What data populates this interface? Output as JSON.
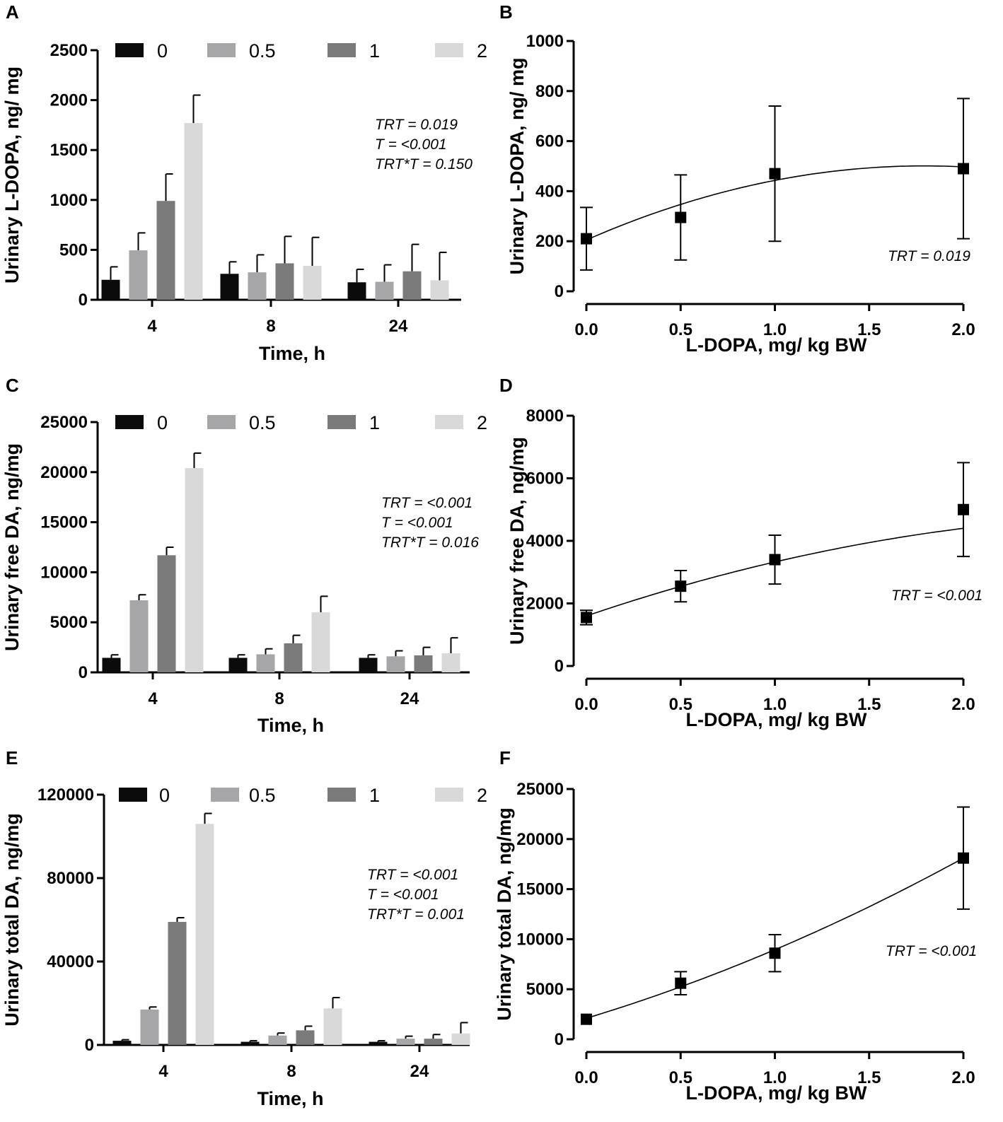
{
  "figure": {
    "palette": {
      "0": "#0b0b0b",
      "0.5": "#a6a6a8",
      "1": "#7a7a7a",
      "2": "#d9d9d9"
    },
    "legend_labels": [
      "0",
      "0.5",
      "1",
      "2"
    ]
  },
  "chart_data": [
    {
      "panel": "A",
      "type": "bar",
      "xlabel": "Time, h",
      "ylabel": "Urinary L-DOPA, ng/ mg",
      "categories": [
        "4",
        "8",
        "24"
      ],
      "ylim": [
        0,
        2500
      ],
      "yticks": [
        0,
        500,
        1000,
        1500,
        2000,
        2500
      ],
      "ytick_labels": [
        "0",
        "500",
        "1000",
        "1500",
        "2000",
        "2500"
      ],
      "series": [
        {
          "name": "0",
          "values": [
            200,
            260,
            175
          ],
          "errors": [
            130,
            120,
            130
          ]
        },
        {
          "name": "0.5",
          "values": [
            495,
            275,
            180
          ],
          "errors": [
            175,
            175,
            170
          ]
        },
        {
          "name": "1",
          "values": [
            990,
            365,
            285
          ],
          "errors": [
            270,
            270,
            270
          ]
        },
        {
          "name": "2",
          "values": [
            1770,
            340,
            195
          ],
          "errors": [
            280,
            285,
            280
          ]
        }
      ],
      "annotations": [
        "TRT = 0.019",
        "T = <0.001",
        "TRT*T = 0.150"
      ]
    },
    {
      "panel": "B",
      "type": "scatter",
      "xlabel": "L-DOPA, mg/ kg BW",
      "ylabel": "Urinary L-DOPA, ng/ mg",
      "x": [
        0.0,
        0.5,
        1.0,
        2.0
      ],
      "y": [
        210,
        295,
        470,
        490
      ],
      "yerr": [
        125,
        170,
        270,
        280
      ],
      "fit": {
        "kind": "quadratic",
        "coef": [
          205,
          330,
          -92
        ]
      },
      "xlim": [
        0,
        2
      ],
      "ylim": [
        0,
        1000
      ],
      "xticks": [
        0,
        0.5,
        1,
        1.5,
        2
      ],
      "xtick_labels": [
        "0.0",
        "0.5",
        "1.0",
        "1.5",
        "2.0"
      ],
      "yticks": [
        0,
        200,
        400,
        600,
        800,
        1000
      ],
      "ytick_labels": [
        "0",
        "200",
        "400",
        "600",
        "800",
        "1000"
      ],
      "annotations": [
        "TRT = 0.019"
      ]
    },
    {
      "panel": "C",
      "type": "bar",
      "xlabel": "Time, h",
      "ylabel": "Urinary free DA, ng/mg",
      "categories": [
        "4",
        "8",
        "24"
      ],
      "ylim": [
        0,
        25000
      ],
      "yticks": [
        0,
        5000,
        10000,
        15000,
        20000,
        25000
      ],
      "ytick_labels": [
        "0",
        "5000",
        "10000",
        "15000",
        "20000",
        "25000"
      ],
      "series": [
        {
          "name": "0",
          "values": [
            1450,
            1450,
            1450
          ],
          "errors": [
            300,
            300,
            300
          ]
        },
        {
          "name": "0.5",
          "values": [
            7200,
            1800,
            1600
          ],
          "errors": [
            550,
            550,
            550
          ]
        },
        {
          "name": "1",
          "values": [
            11700,
            2900,
            1700
          ],
          "errors": [
            800,
            800,
            800
          ]
        },
        {
          "name": "2",
          "values": [
            20400,
            6000,
            1900
          ],
          "errors": [
            1500,
            1600,
            1550
          ]
        }
      ],
      "annotations": [
        "TRT = <0.001",
        "T = <0.001",
        "TRT*T = 0.016"
      ]
    },
    {
      "panel": "D",
      "type": "scatter",
      "xlabel": "L-DOPA, mg/ kg BW",
      "ylabel": "Urinary free DA, ng/mg",
      "x": [
        0.0,
        0.5,
        1.0,
        2.0
      ],
      "y": [
        1550,
        2550,
        3400,
        5000
      ],
      "yerr": [
        230,
        500,
        780,
        1500
      ],
      "fit": {
        "kind": "quadratic",
        "coef": [
          1600,
          2050,
          -325
        ]
      },
      "xlim": [
        0,
        2
      ],
      "ylim": [
        0,
        8000
      ],
      "xticks": [
        0,
        0.5,
        1,
        1.5,
        2
      ],
      "xtick_labels": [
        "0.0",
        "0.5",
        "1.0",
        "1.5",
        "2.0"
      ],
      "yticks": [
        0,
        2000,
        4000,
        6000,
        8000
      ],
      "ytick_labels": [
        "0",
        "2000",
        "4000",
        "6000",
        "8000"
      ],
      "annotations": [
        "TRT = <0.001"
      ]
    },
    {
      "panel": "E",
      "type": "bar",
      "xlabel": "Time, h",
      "ylabel": "Urinary total DA, ng/mg",
      "categories": [
        "4",
        "8",
        "24"
      ],
      "ylim": [
        0,
        120000
      ],
      "yticks": [
        0,
        40000,
        80000,
        120000
      ],
      "ytick_labels": [
        "0",
        "40000",
        "80000",
        "120000"
      ],
      "series": [
        {
          "name": "0",
          "values": [
            2000,
            1500,
            1500
          ],
          "errors": [
            500,
            500,
            500
          ]
        },
        {
          "name": "0.5",
          "values": [
            17000,
            4500,
            3000
          ],
          "errors": [
            1200,
            1200,
            1200
          ]
        },
        {
          "name": "1",
          "values": [
            59000,
            7000,
            3000
          ],
          "errors": [
            2000,
            2000,
            2000
          ]
        },
        {
          "name": "2",
          "values": [
            106000,
            17500,
            5500
          ],
          "errors": [
            5000,
            5200,
            5200
          ]
        }
      ],
      "annotations": [
        "TRT = <0.001",
        "T = <0.001",
        "TRT*T = 0.001"
      ]
    },
    {
      "panel": "F",
      "type": "scatter",
      "xlabel": "L-DOPA, mg/ kg BW",
      "ylabel": "Urinary total DA, ng/mg",
      "x": [
        0.0,
        0.5,
        1.0,
        2.0
      ],
      "y": [
        2000,
        5600,
        8600,
        18100
      ],
      "yerr": [
        0,
        1150,
        1850,
        5100
      ],
      "fit": {
        "kind": "quadratic",
        "coef": [
          2100,
          5700,
          1150
        ]
      },
      "xlim": [
        0,
        2
      ],
      "ylim": [
        0,
        25000
      ],
      "xticks": [
        0,
        0.5,
        1,
        1.5,
        2
      ],
      "xtick_labels": [
        "0.0",
        "0.5",
        "1.0",
        "1.5",
        "2.0"
      ],
      "yticks": [
        0,
        5000,
        10000,
        15000,
        20000,
        25000
      ],
      "ytick_labels": [
        "0",
        "5000",
        "10000",
        "15000",
        "20000",
        "25000"
      ],
      "annotations": [
        "TRT = <0.001"
      ]
    }
  ]
}
